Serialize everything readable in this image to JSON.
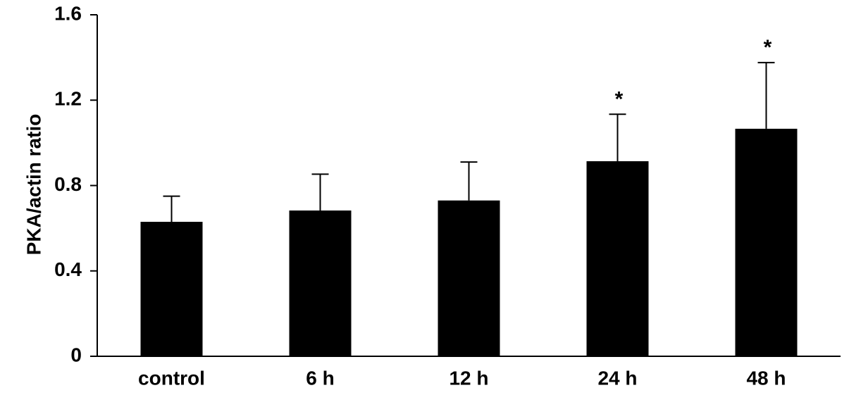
{
  "chart_data": {
    "type": "bar",
    "y_label": "PKA/actin ratio",
    "categories": [
      "control",
      "6 h",
      "12 h",
      "24 h",
      "48 h"
    ],
    "values": [
      0.63,
      0.683,
      0.73,
      0.914,
      1.066
    ],
    "errors": [
      0.12,
      0.17,
      0.18,
      0.22,
      0.31
    ],
    "significance": [
      null,
      null,
      null,
      "*",
      "*"
    ],
    "color": "#000000",
    "ylim": [
      0,
      1.6
    ],
    "yticks": [
      0,
      0.4,
      0.8,
      1.2,
      1.6
    ],
    "grid": false
  }
}
